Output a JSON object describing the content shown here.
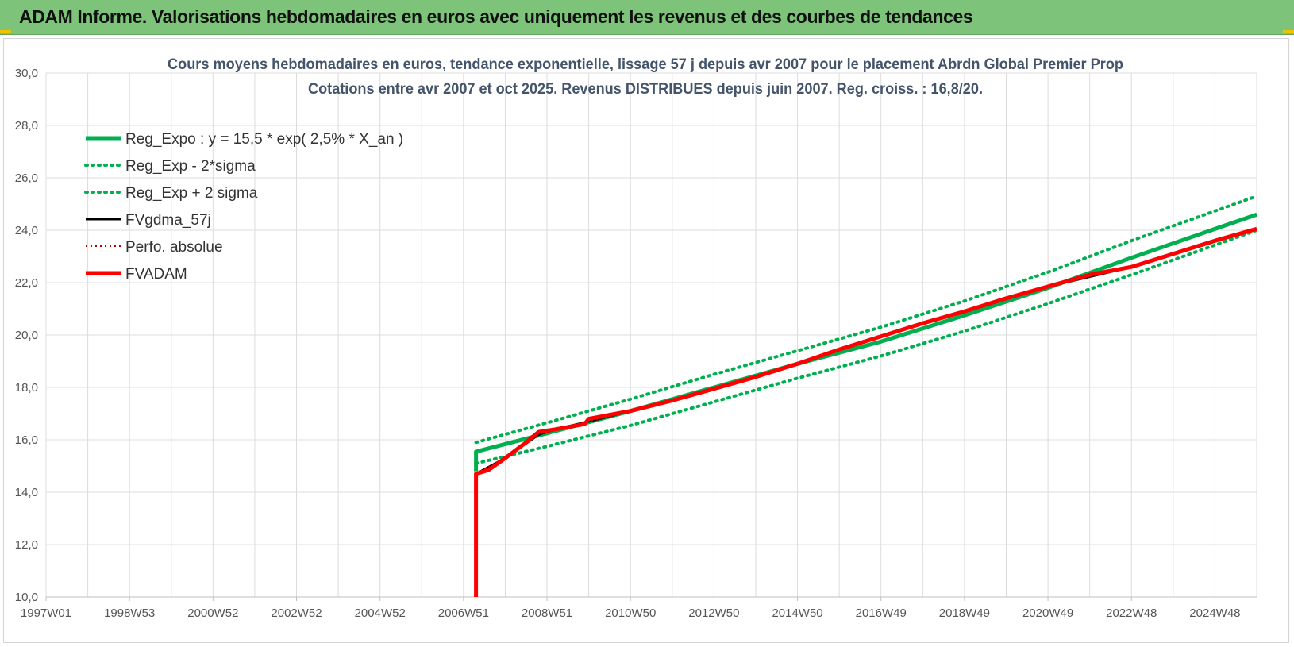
{
  "header": {
    "title": "ADAM Informe. Valorisations hebdomadaires en euros avec uniquement les revenus et des courbes de tendances"
  },
  "colors": {
    "header_bg": "#7dc37a",
    "green": "#00b050",
    "red": "#ff0000",
    "dark_red": "#c00000",
    "black": "#000000"
  },
  "chart_data": {
    "type": "line",
    "title_lines": [
      "Cours moyens hebdomadaires en euros, tendance exponentielle, lissage 57 j depuis avr 2007 pour le placement Abrdn Global Premier Prop",
      "Cotations entre avr 2007 et oct 2025.  Revenus DISTRIBUES depuis juin 2007. Reg. croiss. : 16,8/20."
    ],
    "ylim": [
      10,
      30
    ],
    "xlim": [
      1997.0,
      2026.0
    ],
    "y_ticks": [
      "10,0",
      "12,0",
      "14,0",
      "16,0",
      "18,0",
      "20,0",
      "22,0",
      "24,0",
      "26,0",
      "28,0",
      "30,0"
    ],
    "x_ticks": [
      {
        "label": "1997W01",
        "x": 1997.0
      },
      {
        "label": "1998W53",
        "x": 1999.0
      },
      {
        "label": "2000W52",
        "x": 2001.0
      },
      {
        "label": "2002W52",
        "x": 2003.0
      },
      {
        "label": "2004W52",
        "x": 2005.0
      },
      {
        "label": "2006W51",
        "x": 2007.0
      },
      {
        "label": "2008W51",
        "x": 2009.0
      },
      {
        "label": "2010W50",
        "x": 2011.0
      },
      {
        "label": "2012W50",
        "x": 2013.0
      },
      {
        "label": "2014W50",
        "x": 2015.0
      },
      {
        "label": "2016W49",
        "x": 2017.0
      },
      {
        "label": "2018W49",
        "x": 2019.0
      },
      {
        "label": "2020W49",
        "x": 2021.0
      },
      {
        "label": "2022W48",
        "x": 2023.0
      },
      {
        "label": "2024W48",
        "x": 2025.0
      }
    ],
    "grid": true,
    "legend_position": "top-left",
    "series": [
      {
        "name": "Reg_Expo : y = 15,5 * exp( 2,5% *  X_an )",
        "style": "solid-green",
        "points": [
          [
            2007.3,
            14.8
          ],
          [
            2007.3,
            15.55
          ],
          [
            2009,
            16.25
          ],
          [
            2011,
            17.1
          ],
          [
            2013,
            18.0
          ],
          [
            2015,
            18.9
          ],
          [
            2017,
            19.75
          ],
          [
            2019,
            20.75
          ],
          [
            2021,
            21.8
          ],
          [
            2023,
            22.95
          ],
          [
            2026,
            24.6
          ]
        ]
      },
      {
        "name": "Reg_Exp - 2*sigma",
        "style": "dotted-green",
        "points": [
          [
            2007.3,
            15.1
          ],
          [
            2009,
            15.75
          ],
          [
            2011,
            16.55
          ],
          [
            2013,
            17.45
          ],
          [
            2015,
            18.35
          ],
          [
            2017,
            19.2
          ],
          [
            2019,
            20.15
          ],
          [
            2021,
            21.2
          ],
          [
            2023,
            22.3
          ],
          [
            2026,
            24.0
          ]
        ]
      },
      {
        "name": "Reg_Exp + 2 sigma",
        "style": "dotted-green",
        "points": [
          [
            2007.3,
            15.9
          ],
          [
            2009,
            16.65
          ],
          [
            2011,
            17.55
          ],
          [
            2013,
            18.5
          ],
          [
            2015,
            19.4
          ],
          [
            2017,
            20.3
          ],
          [
            2019,
            21.3
          ],
          [
            2021,
            22.4
          ],
          [
            2023,
            23.6
          ],
          [
            2026,
            25.3
          ]
        ]
      },
      {
        "name": "FVgdma_57j",
        "style": "solid-black",
        "points": [
          [
            2007.3,
            10.0
          ],
          [
            2007.3,
            14.7
          ],
          [
            2008,
            15.3
          ],
          [
            2008.8,
            16.2
          ],
          [
            2009.2,
            16.4
          ],
          [
            2010,
            16.7
          ],
          [
            2011,
            17.1
          ],
          [
            2013,
            17.95
          ],
          [
            2015,
            18.9
          ],
          [
            2017,
            19.95
          ],
          [
            2019,
            20.9
          ],
          [
            2021,
            21.85
          ],
          [
            2023,
            22.6
          ],
          [
            2026,
            24.05
          ]
        ]
      },
      {
        "name": "Perfo. absolue",
        "style": "dotted-darkred",
        "points": [
          [
            2007.3,
            14.7
          ],
          [
            2008,
            15.3
          ],
          [
            2008.8,
            16.2
          ],
          [
            2009.2,
            16.4
          ],
          [
            2010,
            16.7
          ],
          [
            2011,
            17.1
          ],
          [
            2013,
            17.95
          ],
          [
            2015,
            18.9
          ],
          [
            2017,
            19.95
          ],
          [
            2019,
            20.9
          ],
          [
            2021,
            21.85
          ],
          [
            2023,
            22.6
          ],
          [
            2026,
            24.05
          ]
        ]
      },
      {
        "name": "FVADAM",
        "style": "solid-red",
        "points": [
          [
            2007.3,
            10.0
          ],
          [
            2007.3,
            14.7
          ],
          [
            2007.6,
            14.85
          ],
          [
            2008,
            15.3
          ],
          [
            2008.5,
            15.9
          ],
          [
            2008.8,
            16.3
          ],
          [
            2009.2,
            16.4
          ],
          [
            2009.9,
            16.6
          ],
          [
            2010.0,
            16.8
          ],
          [
            2010.5,
            16.95
          ],
          [
            2011,
            17.1
          ],
          [
            2012,
            17.5
          ],
          [
            2013,
            17.95
          ],
          [
            2014,
            18.4
          ],
          [
            2015,
            18.9
          ],
          [
            2016,
            19.45
          ],
          [
            2017,
            19.95
          ],
          [
            2018,
            20.45
          ],
          [
            2019,
            20.9
          ],
          [
            2020,
            21.4
          ],
          [
            2021,
            21.85
          ],
          [
            2022,
            22.3
          ],
          [
            2023,
            22.6
          ],
          [
            2024,
            23.1
          ],
          [
            2025,
            23.6
          ],
          [
            2026,
            24.05
          ]
        ]
      }
    ]
  }
}
